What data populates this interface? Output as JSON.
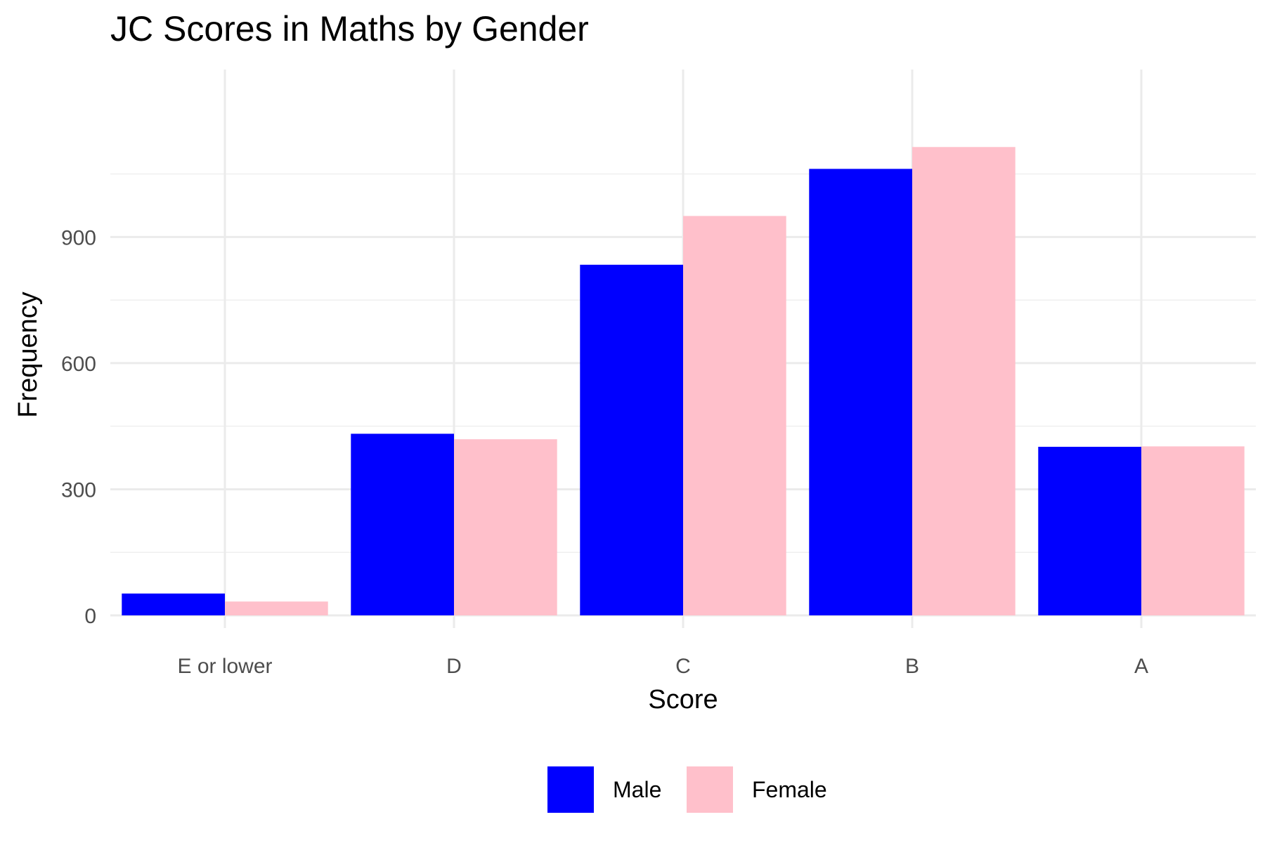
{
  "chart_data": {
    "type": "bar",
    "title": "JC Scores in Maths by Gender",
    "xlabel": "Score",
    "ylabel": "Frequency",
    "categories": [
      "E or lower",
      "D",
      "C",
      "B",
      "A"
    ],
    "series": [
      {
        "name": "Male",
        "color": "#0000ff",
        "values": [
          52,
          432,
          834,
          1062,
          401
        ]
      },
      {
        "name": "Female",
        "color": "#ffc0cb",
        "values": [
          33,
          419,
          950,
          1114,
          402
        ]
      }
    ],
    "ylim": [
      0,
      1150
    ],
    "yticks": [
      0,
      300,
      600,
      900
    ],
    "grid": true,
    "legend_position": "bottom"
  }
}
